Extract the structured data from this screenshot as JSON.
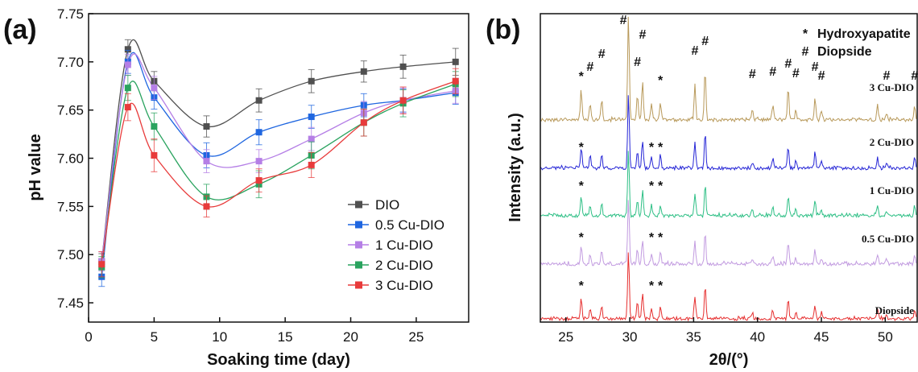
{
  "panels": {
    "a": {
      "label": "(a)"
    },
    "b": {
      "label": "(b)"
    }
  },
  "chart_data": [
    {
      "type": "line",
      "panel": "(a)",
      "xlabel": "Soaking time (day)",
      "ylabel": "pH value",
      "xlim": [
        0,
        29
      ],
      "ylim": [
        7.43,
        7.75
      ],
      "xticks": [
        0,
        5,
        10,
        15,
        20,
        25
      ],
      "yticks": [
        7.45,
        7.5,
        7.55,
        7.6,
        7.65,
        7.7,
        7.75
      ],
      "ytick_labels": [
        "7.45",
        "7.50",
        "7.55",
        "7.60",
        "7.65",
        "7.70",
        "7.75"
      ],
      "x": [
        1,
        3,
        5,
        9,
        13,
        17,
        21,
        24,
        28
      ],
      "legend_position": "bottom-right",
      "series": [
        {
          "name": "DIO",
          "color": "#505050",
          "values": [
            7.493,
            7.713,
            7.68,
            7.633,
            7.66,
            7.68,
            7.69,
            7.695,
            7.7
          ],
          "errors": [
            0.008,
            0.01,
            0.01,
            0.011,
            0.012,
            0.012,
            0.011,
            0.012,
            0.014
          ]
        },
        {
          "name": "0.5 Cu-DIO",
          "color": "#1f66e0",
          "values": [
            7.477,
            7.7,
            7.663,
            7.603,
            7.627,
            7.643,
            7.655,
            7.66,
            7.668
          ],
          "errors": [
            0.01,
            0.012,
            0.012,
            0.013,
            0.013,
            0.012,
            0.012,
            0.012,
            0.012
          ]
        },
        {
          "name": "1 Cu-DIO",
          "color": "#b57fe6",
          "values": [
            7.493,
            7.697,
            7.673,
            7.597,
            7.597,
            7.62,
            7.647,
            7.66,
            7.67
          ],
          "errors": [
            0.01,
            0.011,
            0.012,
            0.012,
            0.012,
            0.012,
            0.012,
            0.013,
            0.013
          ]
        },
        {
          "name": "2 Cu-DIO",
          "color": "#2aa35f",
          "values": [
            7.487,
            7.673,
            7.633,
            7.56,
            7.573,
            7.603,
            7.637,
            7.657,
            7.677
          ],
          "errors": [
            0.011,
            0.013,
            0.014,
            0.013,
            0.014,
            0.014,
            0.014,
            0.014,
            0.013
          ]
        },
        {
          "name": "3 Cu-DIO",
          "color": "#e83b3b",
          "values": [
            7.49,
            7.653,
            7.603,
            7.55,
            7.577,
            7.593,
            7.637,
            7.66,
            7.68
          ],
          "errors": [
            0.013,
            0.014,
            0.017,
            0.011,
            0.012,
            0.013,
            0.014,
            0.014,
            0.013
          ]
        }
      ]
    },
    {
      "type": "line",
      "panel": "(b)",
      "xlabel": "2θ/(°)",
      "ylabel": "Intensity (a.u.)",
      "xlim": [
        23,
        52.5
      ],
      "xticks": [
        25,
        30,
        35,
        40,
        45,
        50
      ],
      "legend": [
        {
          "symbol": "*",
          "label": "Hydroxyapatite"
        },
        {
          "symbol": "#",
          "label": "Diopside"
        }
      ],
      "peaks": [
        {
          "pos": 26.2,
          "h": 30
        },
        {
          "pos": 26.9,
          "h": 16
        },
        {
          "pos": 27.8,
          "h": 20
        },
        {
          "pos": 29.9,
          "h": 105
        },
        {
          "pos": 30.6,
          "h": 24
        },
        {
          "pos": 31.0,
          "h": 40
        },
        {
          "pos": 31.7,
          "h": 17
        },
        {
          "pos": 32.4,
          "h": 17
        },
        {
          "pos": 35.1,
          "h": 35
        },
        {
          "pos": 35.9,
          "h": 50
        },
        {
          "pos": 39.6,
          "h": 9
        },
        {
          "pos": 41.2,
          "h": 14
        },
        {
          "pos": 42.4,
          "h": 32
        },
        {
          "pos": 43.0,
          "h": 10
        },
        {
          "pos": 44.5,
          "h": 22
        },
        {
          "pos": 45.0,
          "h": 9
        },
        {
          "pos": 49.4,
          "h": 15
        },
        {
          "pos": 50.1,
          "h": 7
        },
        {
          "pos": 52.3,
          "h": 14
        }
      ],
      "series": [
        {
          "name": "Diopside",
          "color": "#e62e2e"
        },
        {
          "name": "0.5 Cu-DIO",
          "color": "#c29be0"
        },
        {
          "name": "1 Cu-DIO",
          "color": "#2dbf85"
        },
        {
          "name": "2 Cu-DIO",
          "color": "#2525d6"
        },
        {
          "name": "3 Cu-DIO",
          "color": "#b8995a"
        }
      ],
      "annotations": [
        {
          "trace": "Diopside",
          "items": [
            {
              "symbol": "*",
              "pos": 26.2
            },
            {
              "symbol": "*",
              "pos": 31.7
            },
            {
              "symbol": "*",
              "pos": 32.4
            }
          ]
        },
        {
          "trace": "0.5 Cu-DIO",
          "items": [
            {
              "symbol": "*",
              "pos": 26.2
            },
            {
              "symbol": "*",
              "pos": 31.7
            },
            {
              "symbol": "*",
              "pos": 32.4
            }
          ]
        },
        {
          "trace": "1 Cu-DIO",
          "items": [
            {
              "symbol": "*",
              "pos": 26.2
            },
            {
              "symbol": "*",
              "pos": 31.7
            },
            {
              "symbol": "*",
              "pos": 32.4
            }
          ]
        },
        {
          "trace": "2 Cu-DIO",
          "items": [
            {
              "symbol": "*",
              "pos": 26.2
            },
            {
              "symbol": "*",
              "pos": 31.7
            },
            {
              "symbol": "*",
              "pos": 32.4
            }
          ]
        },
        {
          "trace": "3 Cu-DIO",
          "items": [
            {
              "symbol": "*",
              "pos": 26.2
            },
            {
              "symbol": "#",
              "pos": 26.9
            },
            {
              "symbol": "#",
              "pos": 27.8
            },
            {
              "symbol": "#",
              "pos": 29.5
            },
            {
              "symbol": "#",
              "pos": 30.6
            },
            {
              "symbol": "#",
              "pos": 31.0
            },
            {
              "symbol": "*",
              "pos": 32.4
            },
            {
              "symbol": "#",
              "pos": 35.1
            },
            {
              "symbol": "#",
              "pos": 35.9
            },
            {
              "symbol": "#",
              "pos": 39.6
            },
            {
              "symbol": "#",
              "pos": 41.2
            },
            {
              "symbol": "#",
              "pos": 42.4
            },
            {
              "symbol": "#",
              "pos": 43.0
            },
            {
              "symbol": "#",
              "pos": 44.5
            },
            {
              "symbol": "#",
              "pos": 45.0
            },
            {
              "symbol": "#",
              "pos": 50.1
            },
            {
              "symbol": "#",
              "pos": 52.3
            }
          ]
        }
      ]
    }
  ]
}
